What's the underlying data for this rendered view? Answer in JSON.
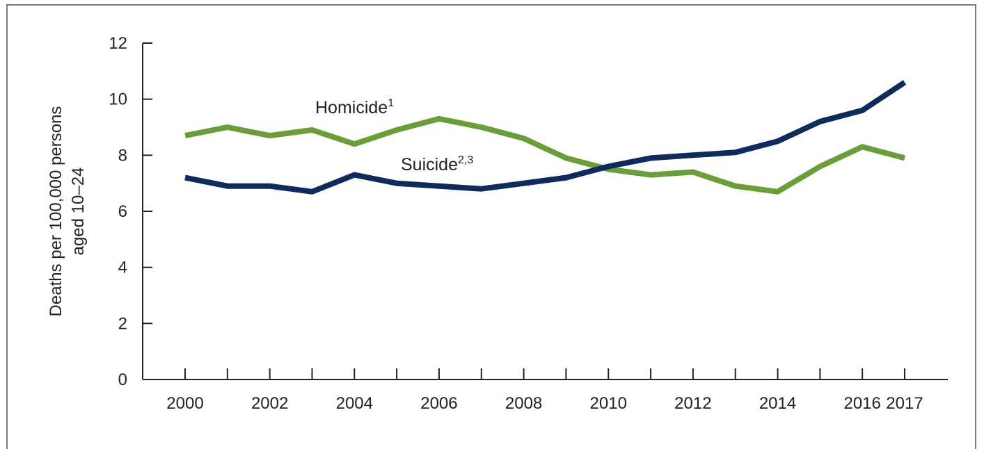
{
  "chart_data": {
    "type": "line",
    "title": "",
    "xlabel": "",
    "ylabel_lines": [
      "Deaths per 100,000 persons",
      "aged 10–24"
    ],
    "ylim": [
      0,
      12
    ],
    "yticks": [
      0,
      2,
      4,
      6,
      8,
      10,
      12
    ],
    "xlim": [
      2000,
      2017
    ],
    "x": [
      2000,
      2001,
      2002,
      2003,
      2004,
      2005,
      2006,
      2007,
      2008,
      2009,
      2010,
      2011,
      2012,
      2013,
      2014,
      2015,
      2016,
      2017
    ],
    "xtick_labels": [
      "2000",
      "2002",
      "2004",
      "2006",
      "2008",
      "2010",
      "2012",
      "2014",
      "2016",
      "2017"
    ],
    "xtick_label_years": [
      2000,
      2002,
      2004,
      2006,
      2008,
      2010,
      2012,
      2014,
      2016,
      2017
    ],
    "grid": false,
    "legend": "inline labels",
    "series": [
      {
        "name": "Homicide",
        "superscript": "1",
        "color": "#6b9e3a",
        "values": [
          8.7,
          9.0,
          8.7,
          8.9,
          8.4,
          8.9,
          9.3,
          9.0,
          8.6,
          7.9,
          7.5,
          7.3,
          7.4,
          6.9,
          6.7,
          7.6,
          8.3,
          7.9
        ]
      },
      {
        "name": "Suicide",
        "superscript": "2,3",
        "color": "#0f2b5b",
        "values": [
          7.2,
          6.9,
          6.9,
          6.7,
          7.3,
          7.0,
          6.9,
          6.8,
          7.0,
          7.2,
          7.6,
          7.9,
          8.0,
          8.1,
          8.5,
          9.2,
          9.6,
          10.6
        ]
      }
    ]
  }
}
